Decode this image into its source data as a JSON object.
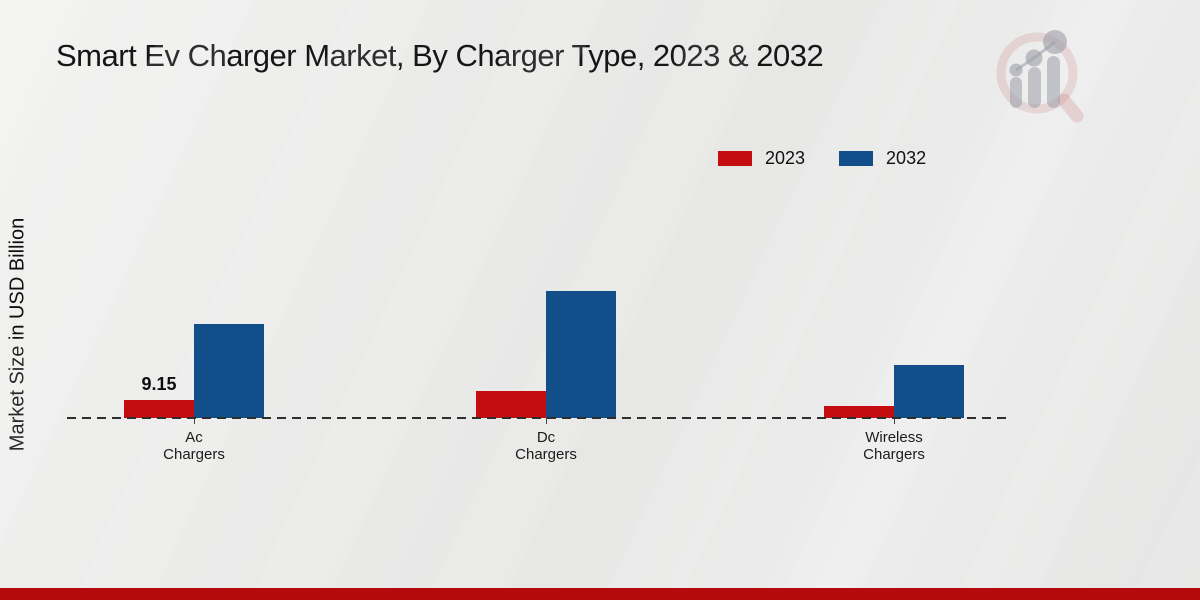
{
  "title": "Smart Ev Charger Market, By Charger Type, 2023 & 2032",
  "y_axis_label": "Market Size in USD Billion",
  "legend": {
    "items": [
      {
        "label": "2023",
        "color": "#c40d10"
      },
      {
        "label": "2032",
        "color": "#124e89"
      }
    ]
  },
  "icons": {
    "watermark": "magnifier-bar-chart-logo"
  },
  "colors": {
    "series_2023": "#c40d10",
    "series_2032": "#124e89",
    "footer_strip": "#b30b0d",
    "axis_line": "#2e2e2e"
  },
  "chart_data": {
    "type": "bar",
    "title": "Smart Ev Charger Market, By Charger Type, 2023 & 2032",
    "xlabel": "",
    "ylabel": "Market Size in USD Billion",
    "categories": [
      "Ac Chargers",
      "Dc Chargers",
      "Wireless Chargers"
    ],
    "series": [
      {
        "name": "2023",
        "color": "#c40d10",
        "values": [
          9.15,
          13.4,
          6.0
        ]
      },
      {
        "name": "2032",
        "color": "#124e89",
        "values": [
          46.8,
          63.3,
          26.5
        ]
      }
    ],
    "annotations": [
      {
        "series": "2023",
        "category": "Ac Chargers",
        "text": "9.15"
      }
    ],
    "baseline": 0,
    "ylim": [
      0,
      70
    ],
    "grid": false,
    "axis_style": "dashed-zero-line",
    "legend_position": "top-right"
  }
}
